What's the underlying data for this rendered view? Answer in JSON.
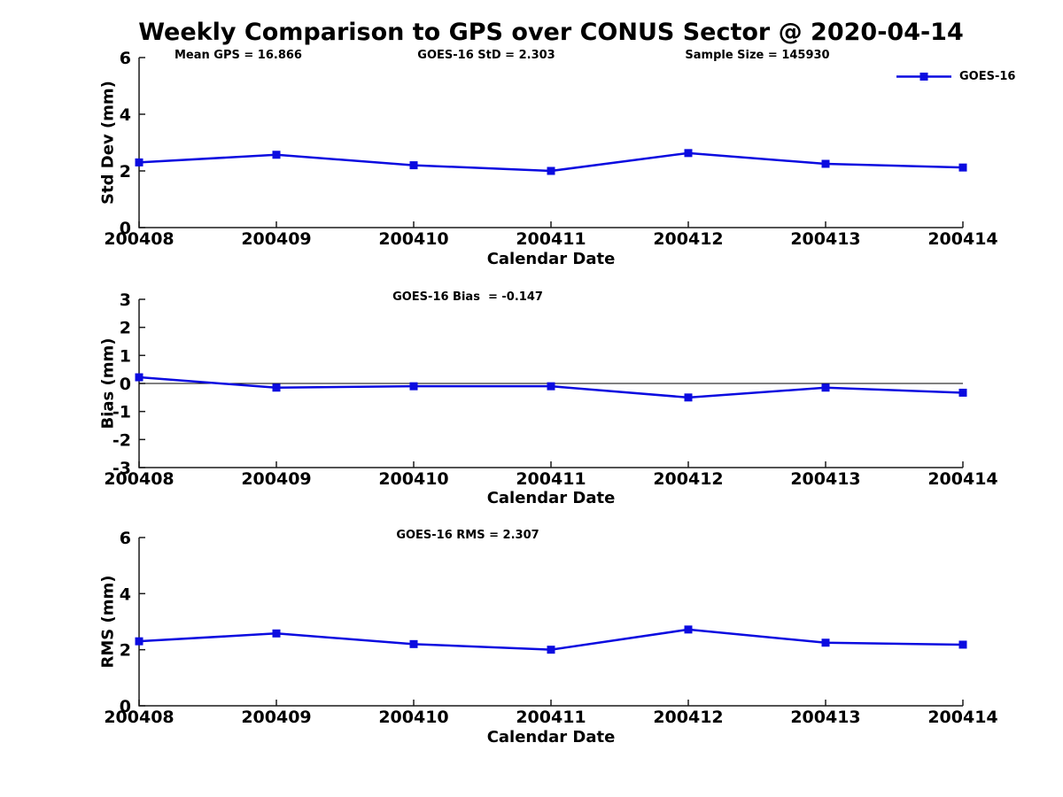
{
  "title": "Weekly Comparison to GPS over CONUS Sector @ 2020-04-14",
  "annotations": {
    "mean_gps": "Mean GPS = 16.866",
    "std": "GOES-16 StD = 2.303",
    "sample_size": "Sample Size = 145930",
    "bias": "GOES-16 Bias  = -0.147",
    "rms": "GOES-16 RMS = 2.307"
  },
  "legend": {
    "label": "GOES-16",
    "position": "top-right",
    "line_color": "#0b0be0"
  },
  "chart_data": [
    {
      "type": "line",
      "name": "std-dev",
      "title": "",
      "xlabel": "Calendar Date",
      "ylabel": "Std Dev (mm)",
      "categories": [
        "200408",
        "200409",
        "200410",
        "200411",
        "200412",
        "200413",
        "200414"
      ],
      "series": [
        {
          "name": "GOES-16",
          "values": [
            2.3,
            2.57,
            2.2,
            2.0,
            2.63,
            2.25,
            2.12
          ]
        }
      ],
      "ylim": [
        0,
        6
      ],
      "yticks": [
        0,
        2,
        4,
        6
      ],
      "grid": false,
      "marker": "square"
    },
    {
      "type": "line",
      "name": "bias",
      "title": "",
      "xlabel": "Calendar Date",
      "ylabel": "Bias (mm)",
      "categories": [
        "200408",
        "200409",
        "200410",
        "200411",
        "200412",
        "200413",
        "200414"
      ],
      "series": [
        {
          "name": "GOES-16",
          "values": [
            0.22,
            -0.15,
            -0.1,
            -0.1,
            -0.5,
            -0.15,
            -0.33
          ]
        }
      ],
      "ylim": [
        -3,
        3
      ],
      "yticks": [
        -3,
        -2,
        -1,
        0,
        1,
        2,
        3
      ],
      "refline": 0,
      "grid": false,
      "marker": "square"
    },
    {
      "type": "line",
      "name": "rms",
      "title": "",
      "xlabel": "Calendar Date",
      "ylabel": "RMS (mm)",
      "categories": [
        "200408",
        "200409",
        "200410",
        "200411",
        "200412",
        "200413",
        "200414"
      ],
      "series": [
        {
          "name": "GOES-16",
          "values": [
            2.3,
            2.58,
            2.2,
            2.0,
            2.72,
            2.25,
            2.18
          ]
        }
      ],
      "ylim": [
        0,
        6
      ],
      "yticks": [
        0,
        2,
        4,
        6
      ],
      "grid": false,
      "marker": "square"
    }
  ]
}
